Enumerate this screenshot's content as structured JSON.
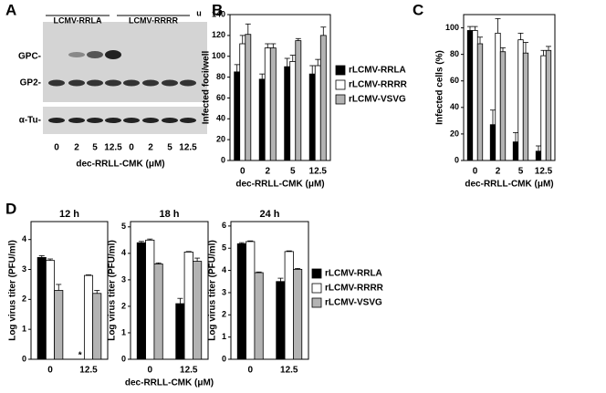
{
  "panel_labels": [
    "A",
    "B",
    "C",
    "D"
  ],
  "blot": {
    "groups": [
      "LCMV-RRLA",
      "LCMV-RRRR",
      "u"
    ],
    "bands": [
      "GPC-",
      "GP2-",
      "α-Tu-"
    ],
    "lanes": [
      "0",
      "2",
      "5",
      "12.5",
      "0",
      "2",
      "5",
      "12.5"
    ],
    "xlabel": "dec-RRLL-CMK (μM)"
  },
  "chart_data": [
    {
      "type": "bar",
      "ylabel": "Infected foci/well",
      "xlabel": "dec-RRLL-CMK (μM)",
      "categories": [
        "0",
        "2",
        "5",
        "12.5"
      ],
      "ylim": [
        0,
        140
      ],
      "yticks": [
        0,
        20,
        40,
        60,
        80,
        100,
        120,
        140
      ],
      "legend": true,
      "series": [
        {
          "name": "rLCMV-RRLA",
          "color": "#000000",
          "values": [
            85,
            78,
            90,
            83
          ],
          "errors": [
            7,
            5,
            8,
            8
          ]
        },
        {
          "name": "rLCMV-RRRR",
          "color": "#ffffff",
          "values": [
            112,
            108,
            95,
            91
          ],
          "errors": [
            8,
            4,
            6,
            6
          ]
        },
        {
          "name": "rLCMV-VSVG",
          "color": "#b3b3b3",
          "values": [
            121,
            108,
            115,
            120
          ],
          "errors": [
            10,
            4,
            2,
            8
          ]
        }
      ]
    },
    {
      "type": "bar",
      "ylabel": "Infected cells (%)",
      "xlabel": "dec-RRLL-CMK (μM)",
      "categories": [
        "0",
        "2",
        "5",
        "12.5"
      ],
      "ylim": [
        0,
        110
      ],
      "yticks": [
        0,
        20,
        40,
        60,
        80,
        100
      ],
      "series": [
        {
          "color": "#000000",
          "values": [
            98,
            27,
            14,
            7
          ],
          "errors": [
            3,
            11,
            7,
            4
          ]
        },
        {
          "color": "#ffffff",
          "values": [
            98,
            96,
            91,
            79
          ],
          "errors": [
            3,
            11,
            5,
            4
          ]
        },
        {
          "color": "#b3b3b3",
          "values": [
            88,
            82,
            81,
            83
          ],
          "errors": [
            5,
            3,
            8,
            3
          ]
        }
      ]
    },
    {
      "type": "bar",
      "title": "12 h",
      "ylabel": "Log virus titer (PFU/ml)",
      "categories": [
        "0",
        "12.5"
      ],
      "ylim": [
        0,
        4.6
      ],
      "yticks": [
        0,
        1,
        2,
        3,
        4
      ],
      "legend": true,
      "annotation": "*",
      "series": [
        {
          "name": "rLCMV-RRLA",
          "color": "#000000",
          "values": [
            3.4,
            null
          ],
          "errors": [
            0.06,
            null
          ]
        },
        {
          "name": "rLCMV-RRRR",
          "color": "#ffffff",
          "values": [
            3.3,
            2.8
          ],
          "errors": [
            0.05,
            0.02
          ]
        },
        {
          "name": "rLCMV-VSVG",
          "color": "#b3b3b3",
          "values": [
            2.3,
            2.2
          ],
          "errors": [
            0.2,
            0.1
          ]
        }
      ]
    },
    {
      "type": "bar",
      "title": "18 h",
      "ylabel": "Log virus titer (PFU/ml)",
      "xlabel": "dec-RRLL-CMK (μM)",
      "categories": [
        "0",
        "12.5"
      ],
      "ylim": [
        0,
        5.2
      ],
      "yticks": [
        0,
        1,
        2,
        3,
        4,
        5
      ],
      "series": [
        {
          "color": "#000000",
          "values": [
            4.4,
            2.1
          ],
          "errors": [
            0.05,
            0.2
          ]
        },
        {
          "color": "#ffffff",
          "values": [
            4.5,
            4.05
          ],
          "errors": [
            0.04,
            0.02
          ]
        },
        {
          "color": "#b3b3b3",
          "values": [
            3.6,
            3.7
          ],
          "errors": [
            0.04,
            0.12
          ]
        }
      ]
    },
    {
      "type": "bar",
      "title": "24 h",
      "ylabel": "Log virus titer (PFU/ml)",
      "categories": [
        "0",
        "12.5"
      ],
      "ylim": [
        0,
        6.2
      ],
      "yticks": [
        0,
        1,
        2,
        3,
        4,
        5,
        6
      ],
      "series": [
        {
          "color": "#000000",
          "values": [
            5.2,
            3.5
          ],
          "errors": [
            0.05,
            0.15
          ]
        },
        {
          "color": "#ffffff",
          "values": [
            5.3,
            4.85
          ],
          "errors": [
            0.03,
            0.03
          ]
        },
        {
          "color": "#b3b3b3",
          "values": [
            3.9,
            4.05
          ],
          "errors": [
            0.03,
            0.04
          ]
        }
      ]
    }
  ]
}
